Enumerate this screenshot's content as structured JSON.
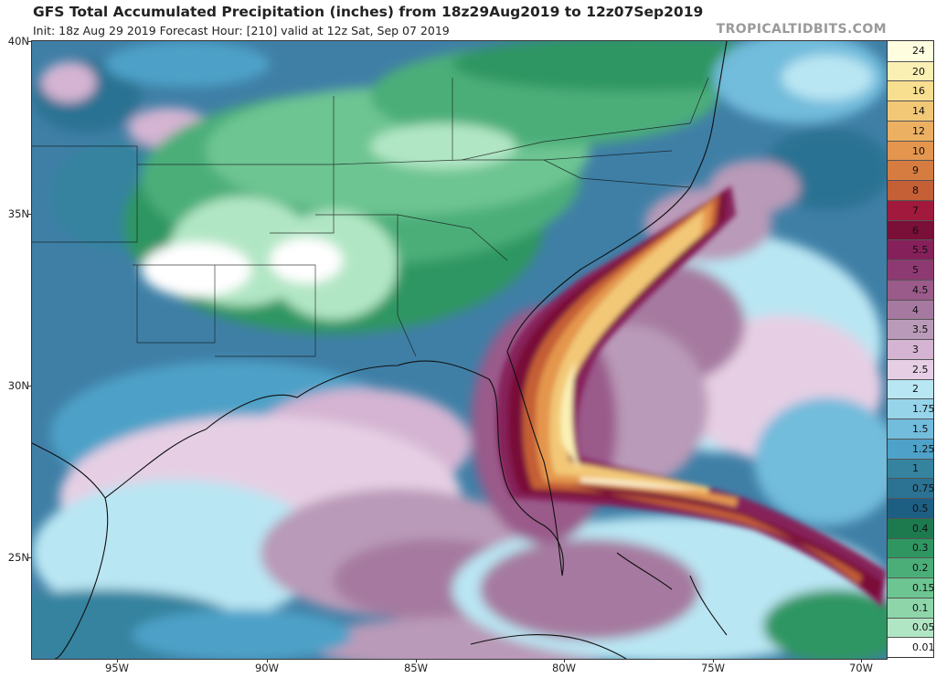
{
  "header": {
    "title": "GFS Total Accumulated Precipitation (inches) from 18z29Aug2019 to 12z07Sep2019",
    "subtitle": "Init: 18z Aug 29 2019   Forecast Hour: [210]   valid at 12z Sat, Sep 07 2019",
    "credit": "TROPICALTIDBITS.COM"
  },
  "map": {
    "lat_labels": [
      "40N",
      "35N",
      "30N",
      "25N"
    ],
    "lon_labels": [
      "95W",
      "90W",
      "85W",
      "80W",
      "75W",
      "70W"
    ]
  },
  "legend": {
    "levels": [
      "24",
      "20",
      "16",
      "14",
      "12",
      "10",
      "9",
      "8",
      "7",
      "6",
      "5.5",
      "5",
      "4.5",
      "4",
      "3.5",
      "3",
      "2.5",
      "2",
      "1.75",
      "1.5",
      "1.25",
      "1",
      "0.75",
      "0.5",
      "0.4",
      "0.3",
      "0.2",
      "0.15",
      "0.1",
      "0.05",
      "0.01"
    ],
    "colors": [
      "#fffde0",
      "#fbf0b4",
      "#f8df90",
      "#f2c877",
      "#ecb062",
      "#e4964e",
      "#d67c40",
      "#c45f36",
      "#a1193c",
      "#7a0f38",
      "#86205a",
      "#8e3a72",
      "#9a5a8a",
      "#a67aa0",
      "#b99ab8",
      "#d4b4d2",
      "#e6cfe4",
      "#b9e6f3",
      "#96d4ea",
      "#72bcdc",
      "#4ea1c8",
      "#35839f",
      "#2c7293",
      "#1d5e83",
      "#1d7a4f",
      "#2f9662",
      "#4bae79",
      "#6dc592",
      "#8ed6aa",
      "#b1e6c4",
      "#ffffff"
    ]
  }
}
